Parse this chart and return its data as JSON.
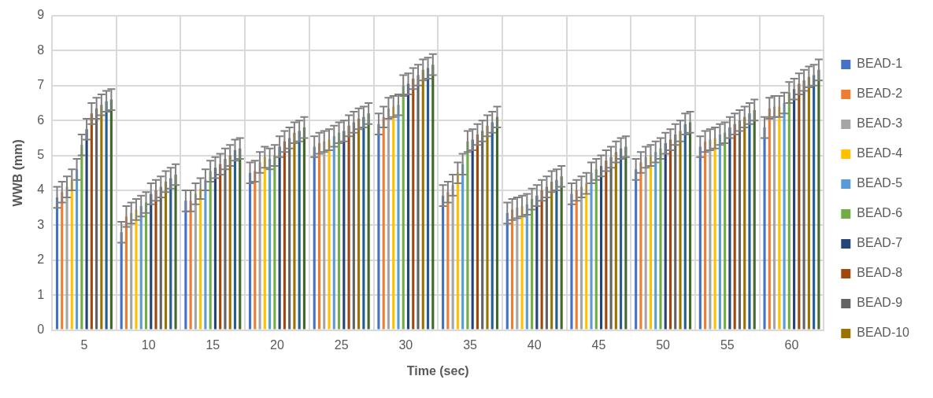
{
  "chart_data": {
    "type": "bar",
    "xlabel": "Time (sec)",
    "ylabel": "WWB (mm)",
    "categories": [
      "5",
      "10",
      "15",
      "20",
      "25",
      "30",
      "35",
      "40",
      "45",
      "50",
      "55",
      "60"
    ],
    "ylim": [
      0,
      9
    ],
    "yticks": [
      0,
      1,
      2,
      3,
      4,
      5,
      6,
      7,
      8,
      9
    ],
    "grid": true,
    "legend": "right",
    "series": [
      {
        "name": "BEAD-1",
        "color": "#4472c4",
        "values": [
          3.8,
          2.8,
          3.7,
          4.5,
          5.25,
          5.9,
          3.85,
          3.35,
          3.9,
          4.6,
          5.25,
          5.8
        ],
        "errors": [
          0.3,
          0.3,
          0.3,
          0.3,
          0.3,
          0.3,
          0.3,
          0.3,
          0.3,
          0.3,
          0.3,
          0.3
        ]
      },
      {
        "name": "BEAD-2",
        "color": "#ed7d31",
        "values": [
          3.95,
          3.25,
          3.7,
          4.55,
          5.35,
          6.1,
          3.95,
          3.45,
          4.0,
          4.8,
          5.4,
          6.35
        ],
        "errors": [
          0.3,
          0.3,
          0.3,
          0.3,
          0.3,
          0.3,
          0.3,
          0.3,
          0.3,
          0.3,
          0.3,
          0.3
        ]
      },
      {
        "name": "BEAD-3",
        "color": "#a5a5a5",
        "values": [
          4.1,
          3.35,
          3.9,
          4.8,
          5.4,
          6.35,
          4.15,
          3.5,
          4.1,
          4.95,
          5.45,
          6.4
        ],
        "errors": [
          0.3,
          0.3,
          0.3,
          0.3,
          0.3,
          0.3,
          0.3,
          0.3,
          0.3,
          0.3,
          0.3,
          0.3
        ]
      },
      {
        "name": "BEAD-4",
        "color": "#ffc000",
        "values": [
          4.3,
          3.45,
          4.05,
          4.95,
          5.45,
          6.4,
          4.5,
          3.55,
          4.2,
          5.0,
          5.5,
          6.4
        ],
        "errors": [
          0.3,
          0.3,
          0.3,
          0.3,
          0.3,
          0.3,
          0.3,
          0.3,
          0.3,
          0.3,
          0.3,
          0.3
        ]
      },
      {
        "name": "BEAD-5",
        "color": "#5b9bd5",
        "values": [
          4.6,
          3.55,
          4.3,
          4.9,
          5.55,
          6.45,
          4.75,
          3.6,
          4.5,
          5.1,
          5.6,
          6.5
        ],
        "errors": [
          0.3,
          0.3,
          0.3,
          0.3,
          0.3,
          0.3,
          0.3,
          0.3,
          0.3,
          0.3,
          0.3,
          0.3
        ]
      },
      {
        "name": "BEAD-6",
        "color": "#70ad47",
        "values": [
          5.3,
          3.65,
          4.55,
          5.0,
          5.65,
          7.0,
          5.4,
          3.75,
          4.6,
          5.2,
          5.65,
          6.8
        ],
        "errors": [
          0.3,
          0.3,
          0.3,
          0.3,
          0.3,
          0.3,
          0.3,
          0.3,
          0.3,
          0.3,
          0.3,
          0.3
        ]
      },
      {
        "name": "BEAD-7",
        "color": "#264478",
        "values": [
          5.75,
          3.9,
          4.65,
          5.25,
          5.7,
          7.05,
          5.45,
          3.85,
          4.7,
          5.35,
          5.8,
          6.9
        ],
        "errors": [
          0.3,
          0.3,
          0.3,
          0.3,
          0.3,
          0.3,
          0.3,
          0.3,
          0.3,
          0.3,
          0.3,
          0.3
        ]
      },
      {
        "name": "BEAD-8",
        "color": "#9e480e",
        "values": [
          6.2,
          4.0,
          4.75,
          5.4,
          5.85,
          7.2,
          5.6,
          4.0,
          4.85,
          5.45,
          5.9,
          7.05
        ],
        "errors": [
          0.3,
          0.3,
          0.3,
          0.3,
          0.3,
          0.3,
          0.3,
          0.3,
          0.3,
          0.3,
          0.3,
          0.3
        ]
      },
      {
        "name": "BEAD-9",
        "color": "#636363",
        "values": [
          6.35,
          4.1,
          4.9,
          5.5,
          5.95,
          7.3,
          5.7,
          4.1,
          4.95,
          5.6,
          6.0,
          7.15
        ],
        "errors": [
          0.3,
          0.3,
          0.3,
          0.3,
          0.3,
          0.3,
          0.3,
          0.3,
          0.3,
          0.3,
          0.3,
          0.3
        ]
      },
      {
        "name": "BEAD-10",
        "color": "#997300",
        "values": [
          6.45,
          4.25,
          5.0,
          5.65,
          6.05,
          7.45,
          5.85,
          4.25,
          5.1,
          5.7,
          6.1,
          7.25
        ],
        "errors": [
          0.3,
          0.3,
          0.3,
          0.3,
          0.3,
          0.3,
          0.3,
          0.3,
          0.3,
          0.3,
          0.3,
          0.3
        ]
      },
      {
        "color": "#255e91",
        "values": [
          6.55,
          4.35,
          5.15,
          5.7,
          6.1,
          7.5,
          5.95,
          4.3,
          5.2,
          5.9,
          6.2,
          7.3
        ],
        "errors": [
          0.3,
          0.3,
          0.3,
          0.3,
          0.3,
          0.3,
          0.3,
          0.3,
          0.3,
          0.3,
          0.3,
          0.3
        ]
      },
      {
        "color": "#43682b",
        "values": [
          6.6,
          4.45,
          5.2,
          5.8,
          6.2,
          7.6,
          6.1,
          4.4,
          5.25,
          5.95,
          6.3,
          7.45
        ],
        "errors": [
          0.3,
          0.3,
          0.3,
          0.3,
          0.3,
          0.3,
          0.3,
          0.3,
          0.3,
          0.3,
          0.3,
          0.3
        ]
      }
    ]
  }
}
